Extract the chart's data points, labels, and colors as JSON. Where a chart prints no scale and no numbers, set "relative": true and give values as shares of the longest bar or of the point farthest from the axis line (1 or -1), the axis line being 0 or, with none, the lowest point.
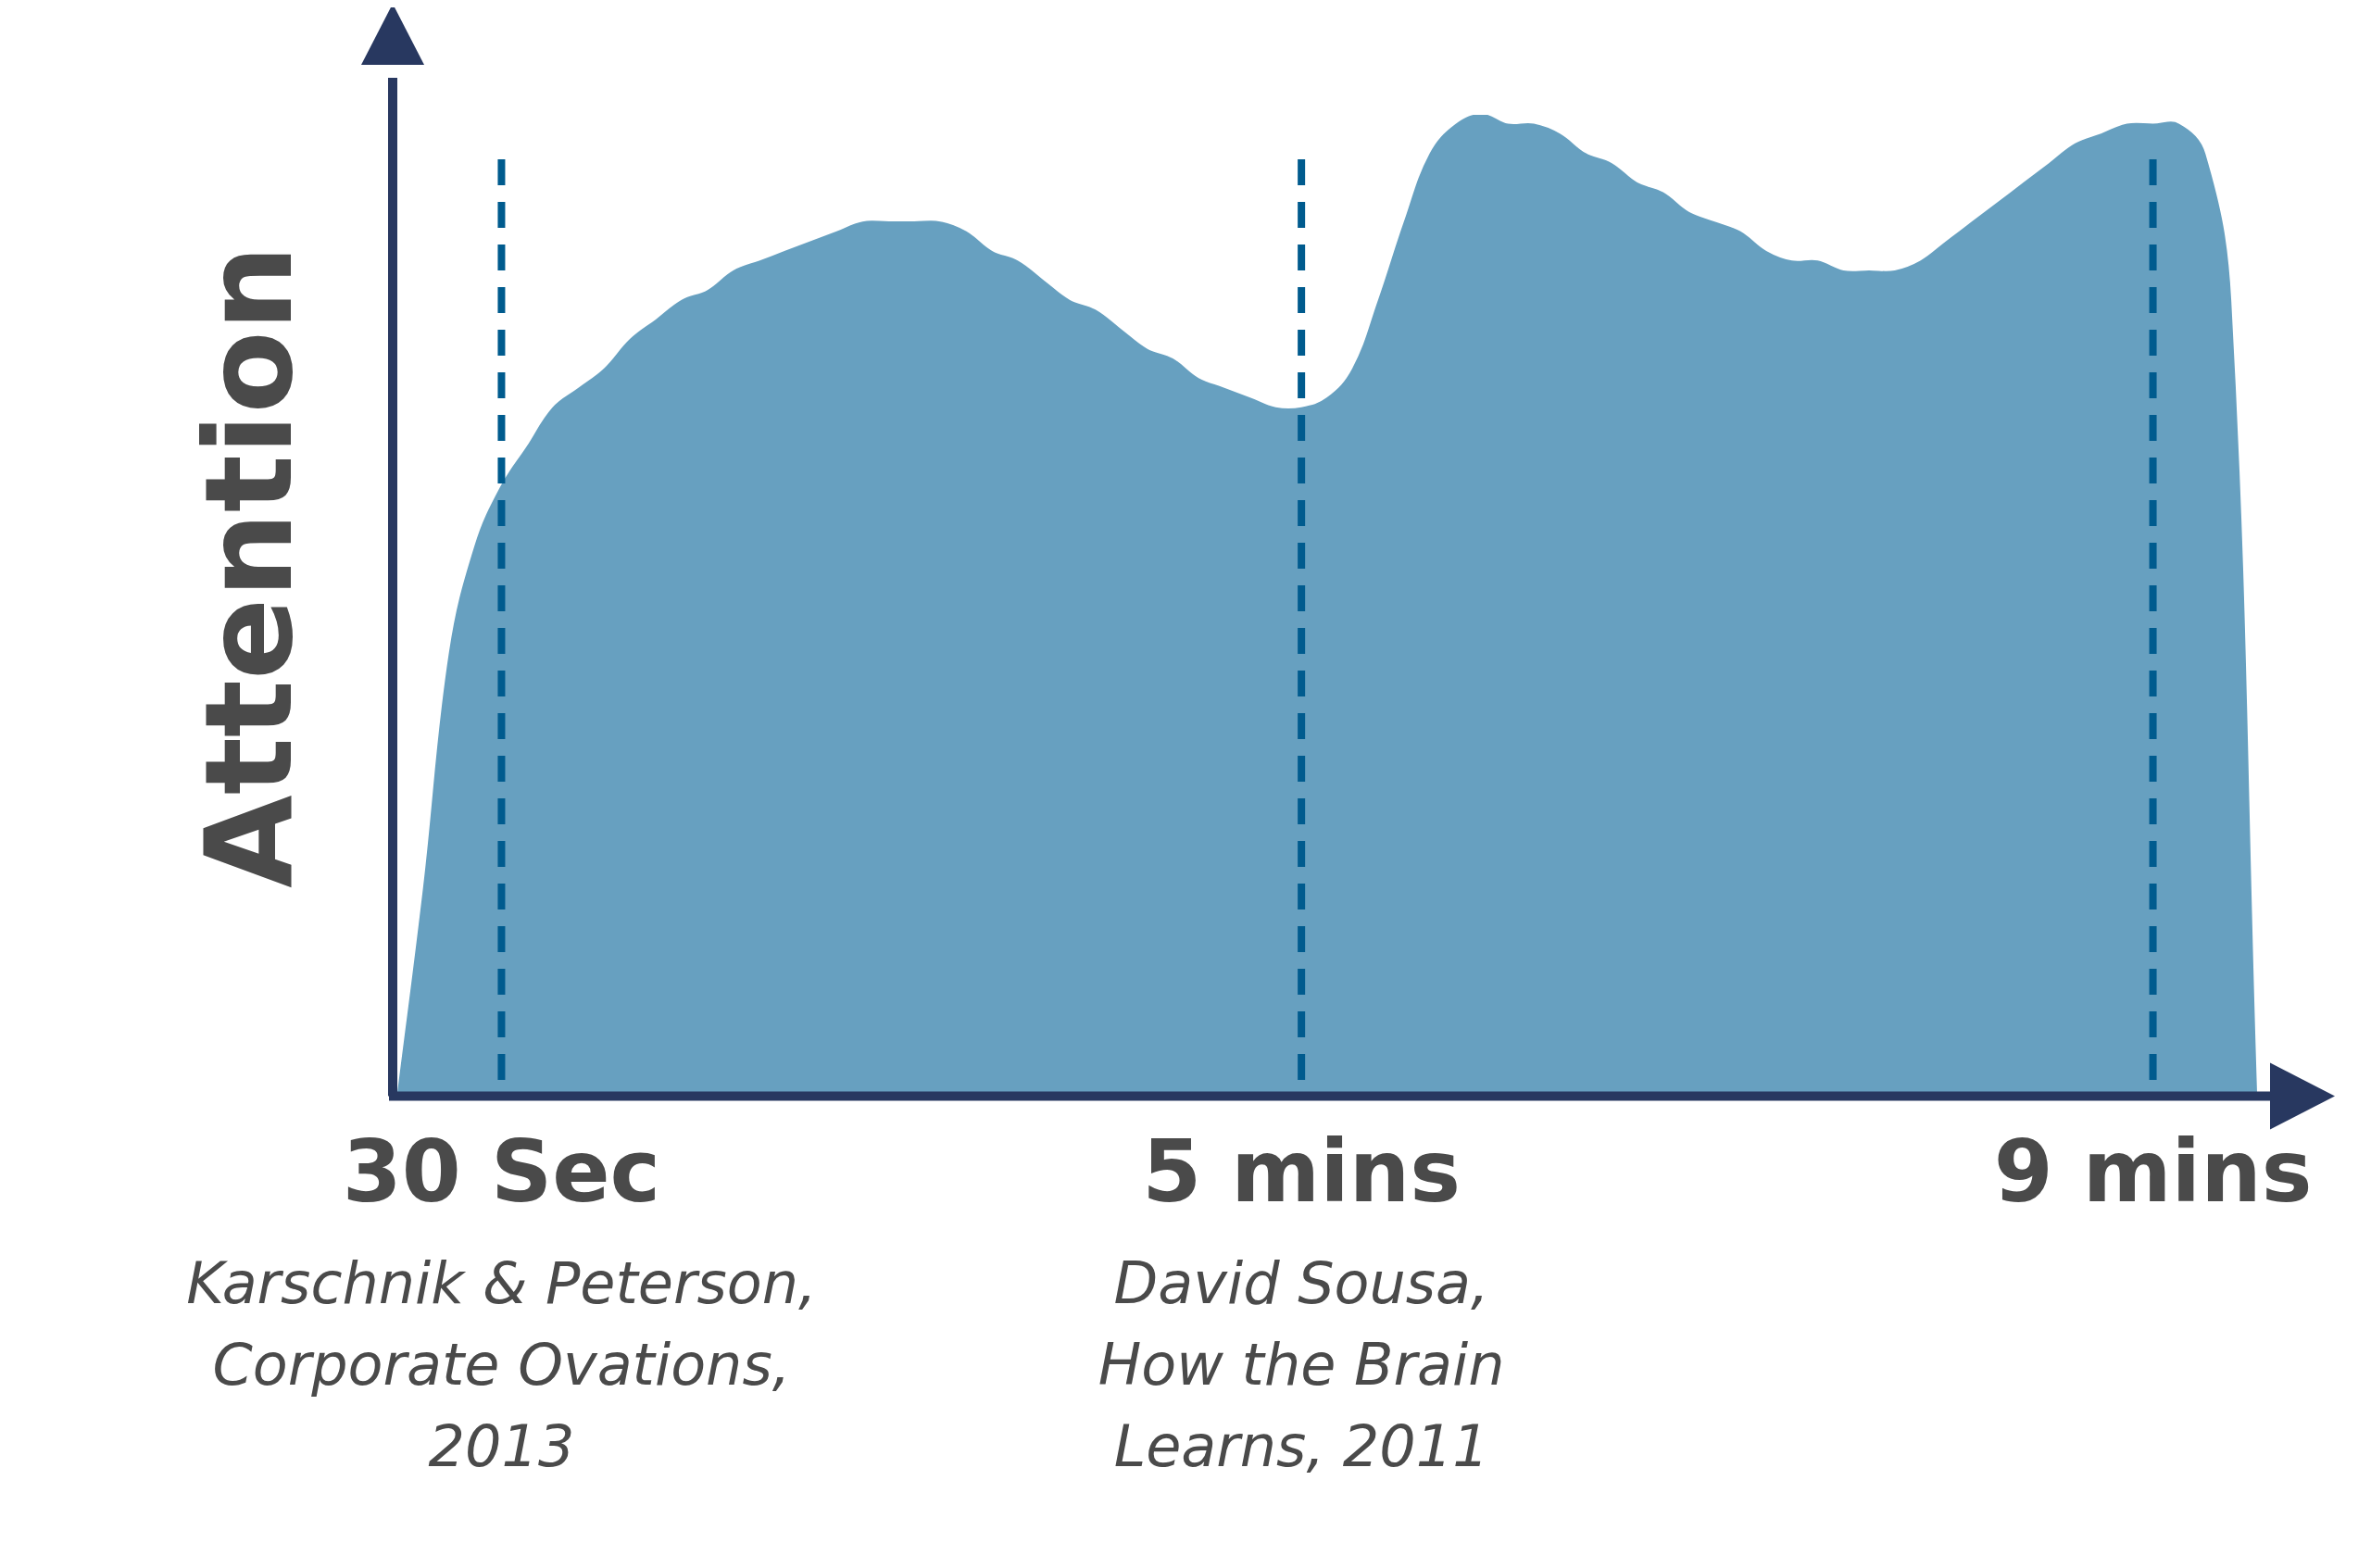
{
  "chart_data": {
    "type": "area",
    "ylabel": "Attention",
    "relative": true,
    "color": "#67a0c0",
    "categories": [
      null,
      null,
      null,
      null,
      "30 Sec",
      null,
      null,
      null,
      null,
      null,
      null,
      null,
      null,
      null,
      null,
      null,
      null,
      null,
      null,
      null,
      null,
      null,
      null,
      null,
      null,
      null,
      null,
      null,
      null,
      null,
      null,
      null,
      null,
      null,
      null,
      "5 mins",
      null,
      null,
      null,
      null,
      null,
      null,
      null,
      null,
      null,
      null,
      null,
      null,
      null,
      null,
      null,
      null,
      null,
      null,
      null,
      null,
      null,
      null,
      null,
      null,
      null,
      null,
      null,
      null,
      null,
      null,
      null,
      null,
      "9 mins",
      null,
      null,
      null,
      null
    ],
    "values": [
      0,
      0.21,
      0.45,
      0.56,
      0.62,
      0.66,
      0.7,
      0.72,
      0.74,
      0.77,
      0.79,
      0.81,
      0.82,
      0.84,
      0.85,
      0.86,
      0.87,
      0.88,
      0.89,
      0.89,
      0.89,
      0.89,
      0.88,
      0.86,
      0.85,
      0.83,
      0.81,
      0.8,
      0.78,
      0.76,
      0.75,
      0.73,
      0.72,
      0.71,
      0.7,
      0.7,
      0.71,
      0.74,
      0.81,
      0.89,
      0.96,
      0.99,
      1,
      0.99,
      0.99,
      0.98,
      0.96,
      0.95,
      0.93,
      0.92,
      0.9,
      0.89,
      0.88,
      0.86,
      0.85,
      0.85,
      0.84,
      0.84,
      0.84,
      0.85,
      0.87,
      0.89,
      0.91,
      0.93,
      0.95,
      0.97,
      0.98,
      0.99,
      0.99,
      0.99,
      0.96,
      0.81,
      0
    ],
    "ref_lines": [
      {
        "axis": "x",
        "value": "30 Sec",
        "color": "#005b8e",
        "line_style": "dashed"
      },
      {
        "axis": "x",
        "value": "5 mins",
        "color": "#005b8e",
        "line_style": "dashed"
      },
      {
        "axis": "x",
        "value": "9 mins",
        "color": "#005b8e",
        "line_style": "dashed"
      }
    ],
    "annotations": [
      "Karschnik & Peterson,\nCorporate Ovations,\n2013",
      "David Sousa,\nHow the Brain\nLearns, 2011"
    ]
  }
}
